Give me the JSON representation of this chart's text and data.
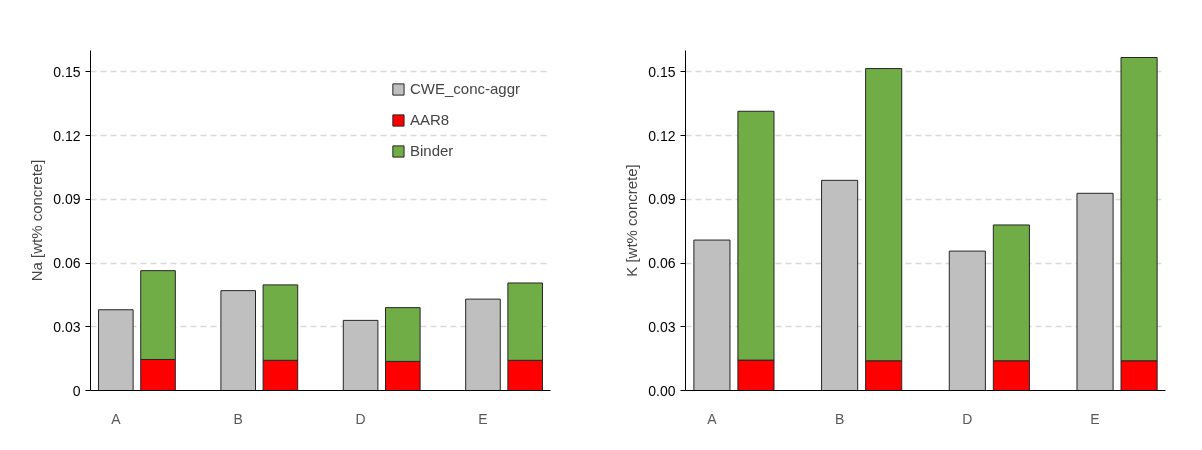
{
  "chart_data": [
    {
      "type": "bar",
      "ylabel": "Na [wt% concrete]",
      "categories": [
        "A",
        null,
        "B",
        null,
        "D",
        null,
        "E",
        null
      ],
      "stacked": true,
      "ylim": [
        0,
        0.16
      ],
      "yticks": [
        0,
        0.03,
        0.06,
        0.09,
        0.12,
        0.15
      ],
      "grid": "y",
      "legend": "top right",
      "series": [
        {
          "name": "CWE_conc-aggr",
          "color": "#bfbfbf",
          "values": [
            0.038,
            null,
            0.047,
            null,
            0.033,
            null,
            0.043,
            null
          ]
        },
        {
          "name": "AAR8",
          "color": "#ff0000",
          "values": [
            null,
            0.0146,
            null,
            0.0142,
            null,
            0.0137,
            null,
            0.0142
          ]
        },
        {
          "name": "Binder",
          "color": "#70ad47",
          "values": [
            null,
            0.0418,
            null,
            0.0355,
            null,
            0.0253,
            null,
            0.0364
          ]
        }
      ]
    },
    {
      "type": "bar",
      "ylabel": "K [wt% concrete]",
      "categories": [
        "A",
        null,
        "B",
        null,
        "D",
        null,
        "E",
        null
      ],
      "stacked": true,
      "ylim": [
        0,
        0.16
      ],
      "yticks": [
        {
          "value": 0,
          "label": "0.00"
        },
        0.03,
        0.06,
        0.09,
        0.12,
        0.15
      ],
      "grid": "y",
      "series": [
        {
          "color": "#bfbfbf",
          "values": [
            0.0708,
            null,
            0.0989,
            null,
            0.0656,
            null,
            0.0928,
            null
          ]
        },
        {
          "color": "#ff0000",
          "values": [
            null,
            0.0143,
            null,
            0.014,
            null,
            0.014,
            null,
            0.014
          ]
        },
        {
          "color": "#70ad47",
          "values": [
            null,
            0.1171,
            null,
            0.1375,
            null,
            0.0639,
            null,
            0.1427
          ]
        }
      ]
    }
  ]
}
